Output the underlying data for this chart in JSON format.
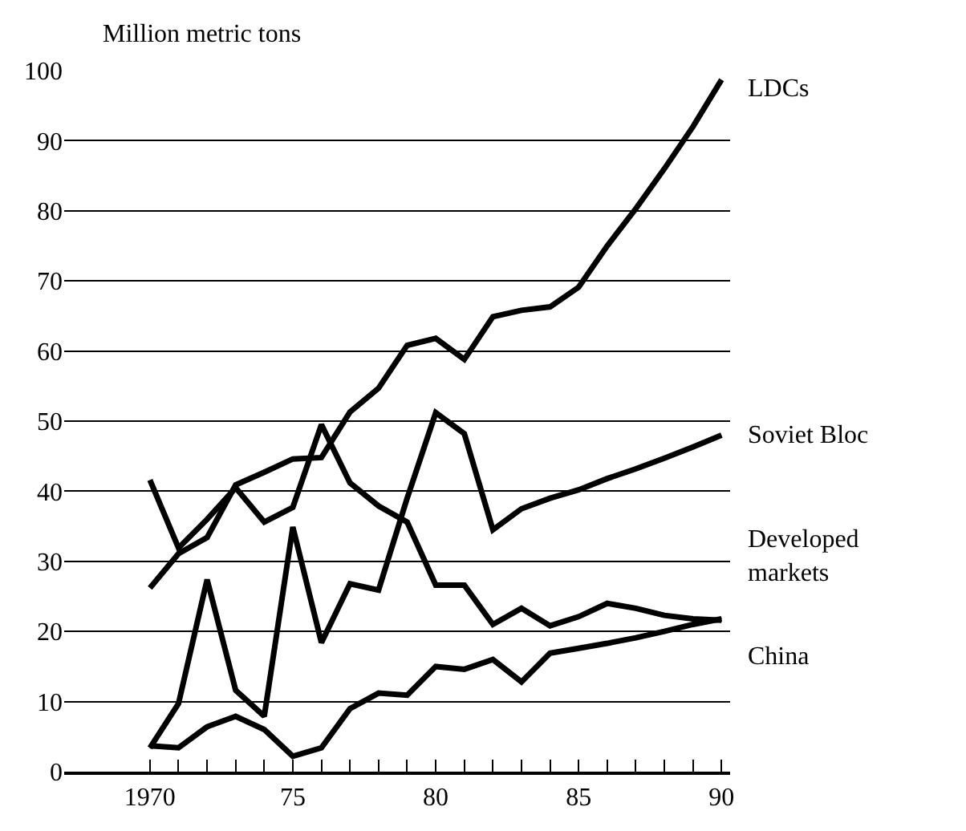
{
  "chart_data": {
    "type": "line",
    "ylabel": "Million metric tons",
    "x": [
      1970,
      1971,
      1972,
      1973,
      1974,
      1975,
      1976,
      1977,
      1978,
      1979,
      1980,
      1981,
      1982,
      1983,
      1984,
      1985,
      1986,
      1987,
      1988,
      1989,
      1990
    ],
    "series": [
      {
        "name": "LDCs",
        "color": "#000000",
        "values": [
          26.2,
          31.1,
          33.4,
          40.9,
          42.7,
          44.6,
          44.8,
          51.3,
          54.7,
          60.8,
          61.8,
          58.8,
          64.9,
          65.8,
          66.3,
          69.1,
          75,
          80.3,
          86,
          92,
          98.7
        ]
      },
      {
        "name": "Soviet Bloc",
        "color": "#000000",
        "values": [
          3.4,
          9.7,
          27.4,
          11.6,
          7.9,
          34.9,
          18.4,
          26.8,
          25.9,
          39,
          51.2,
          48.2,
          34.5,
          37.5,
          39,
          40.2,
          41.8,
          43.2,
          44.7,
          46.3,
          48
        ]
      },
      {
        "name": "Developed markets",
        "color": "#000000",
        "values": [
          41.6,
          31.9,
          36,
          40.5,
          35.6,
          37.7,
          49.5,
          41.2,
          37.9,
          35.6,
          26.6,
          26.6,
          21,
          23.3,
          20.8,
          22.1,
          24,
          23.3,
          22.3,
          21.8,
          21.6
        ]
      },
      {
        "name": "China",
        "color": "#000000",
        "values": [
          3.7,
          3.4,
          6.4,
          7.9,
          6,
          2.2,
          3.4,
          9,
          11.2,
          10.9,
          15,
          14.6,
          16,
          12.8,
          16.9,
          17.6,
          18.3,
          19.1,
          20,
          21,
          21.8
        ]
      }
    ],
    "xlim": [
      1967,
      1990.3
    ],
    "xticks": [
      1970,
      {
        "value": 1971,
        "label": null
      },
      {
        "value": 1972,
        "label": null
      },
      {
        "value": 1973,
        "label": null
      },
      {
        "value": 1974,
        "label": null
      },
      {
        "value": 1975,
        "label": "75"
      },
      {
        "value": 1976,
        "label": null
      },
      {
        "value": 1977,
        "label": null
      },
      {
        "value": 1978,
        "label": null
      },
      {
        "value": 1979,
        "label": null
      },
      {
        "value": 1980,
        "label": "80"
      },
      {
        "value": 1981,
        "label": null
      },
      {
        "value": 1982,
        "label": null
      },
      {
        "value": 1983,
        "label": null
      },
      {
        "value": 1984,
        "label": null
      },
      {
        "value": 1985,
        "label": "85"
      },
      {
        "value": 1986,
        "label": null
      },
      {
        "value": 1987,
        "label": null
      },
      {
        "value": 1988,
        "label": null
      },
      {
        "value": 1989,
        "label": null
      },
      {
        "value": 1990,
        "label": "90"
      }
    ],
    "ylim": [
      0,
      100
    ],
    "yticks": [
      0,
      10,
      20,
      30,
      40,
      50,
      60,
      70,
      80,
      90,
      100
    ],
    "grid": "y",
    "legend": false,
    "marker": "none",
    "line_style": "solid"
  }
}
